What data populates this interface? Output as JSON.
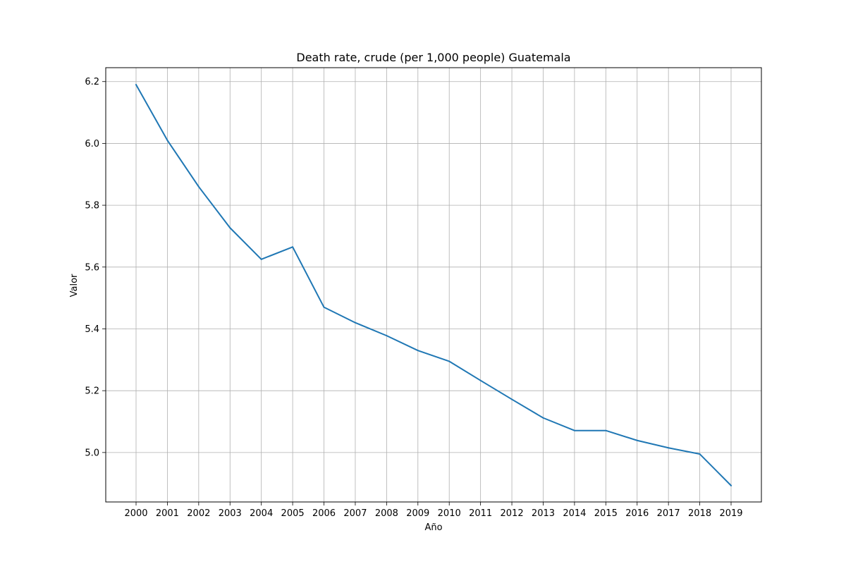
{
  "chart_data": {
    "type": "line",
    "title": "Death rate, crude (per 1,000 people) Guatemala",
    "xlabel": "Año",
    "ylabel": "Valor",
    "x": [
      "2000",
      "2001",
      "2002",
      "2003",
      "2004",
      "2005",
      "2006",
      "2007",
      "2008",
      "2009",
      "2010",
      "2011",
      "2012",
      "2013",
      "2014",
      "2015",
      "2016",
      "2017",
      "2018",
      "2019"
    ],
    "series": [
      {
        "values": [
          6.19,
          6.01,
          5.86,
          5.727,
          5.625,
          5.665,
          5.47,
          5.42,
          5.378,
          5.33,
          5.295,
          5.233,
          5.172,
          5.112,
          5.071,
          5.071,
          5.039,
          5.015,
          4.995,
          4.893
        ],
        "color": "#1f77b4"
      }
    ],
    "yticks": [
      "5.0",
      "5.2",
      "5.4",
      "5.6",
      "5.8",
      "6.0",
      "6.2"
    ],
    "ylim": [
      4.84,
      6.245
    ],
    "grid": true,
    "legend": "none"
  }
}
